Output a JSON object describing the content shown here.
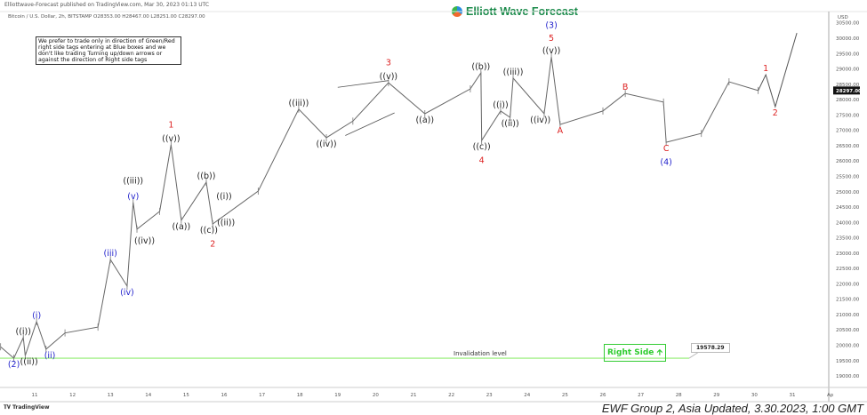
{
  "header": {
    "published": "Elliottwave-Forecast published on TradingView.com, Mar 30, 2023 01:13 UTC",
    "symbol_line": "Bitcoin / U.S. Dollar, 2h, BITSTAMP  O28353.00  H28467.00  L28251.00  C28297.00"
  },
  "brand": {
    "name": "Elliott Wave Forecast",
    "icon": "ewf-logo-icon"
  },
  "note": "We prefer to trade only in direction of Green/Red right side tags entering at Blue boxes and we don't like trading Turning up/down arrows or against the direction of Right side tags",
  "right_side_tag": {
    "label": "Right Side",
    "icon": "arrow-up-icon",
    "color": "#2ecc2e"
  },
  "invalidation": {
    "label": "Invalidation level",
    "value": "19578.29",
    "color": "#90ee70"
  },
  "footer": {
    "tradingview": "TradingView",
    "update": "EWF Group 2, Asia Updated, 3.30.2023, 1:00 GMT"
  },
  "chart_data": {
    "type": "line",
    "title": "",
    "currency": "USD",
    "last_price": "28297.00",
    "ylim": [
      18800,
      30600
    ],
    "xlim": [
      10.1,
      31.95
    ],
    "y_ticks": [
      "30500.00",
      "30000.00",
      "29500.00",
      "29000.00",
      "28500.00",
      "28000.00",
      "27500.00",
      "27000.00",
      "26500.00",
      "26000.00",
      "25500.00",
      "25000.00",
      "24500.00",
      "24000.00",
      "23500.00",
      "23000.00",
      "22500.00",
      "22000.00",
      "21500.00",
      "21000.00",
      "20500.00",
      "20000.00",
      "19500.00",
      "19000.00"
    ],
    "x_ticks": [
      "11",
      "12",
      "13",
      "14",
      "15",
      "16",
      "17",
      "18",
      "19",
      "20",
      "21",
      "22",
      "23",
      "24",
      "25",
      "26",
      "27",
      "28",
      "29",
      "30",
      "31",
      "Ap"
    ],
    "price_path": [
      [
        10.1,
        19950
      ],
      [
        10.45,
        19578
      ],
      [
        10.7,
        20250
      ],
      [
        10.75,
        19660
      ],
      [
        11.05,
        20770
      ],
      [
        11.3,
        19870
      ],
      [
        11.8,
        20400
      ],
      [
        12.67,
        20590
      ],
      [
        13.0,
        22790
      ],
      [
        13.44,
        21925
      ],
      [
        13.6,
        24650
      ],
      [
        13.7,
        23780
      ],
      [
        14.3,
        24360
      ],
      [
        14.6,
        26530
      ],
      [
        14.87,
        24070
      ],
      [
        15.53,
        25310
      ],
      [
        15.7,
        23950
      ],
      [
        16.9,
        25020
      ],
      [
        17.97,
        27690
      ],
      [
        18.7,
        26760
      ],
      [
        19.4,
        27300
      ],
      [
        20.34,
        28550
      ],
      [
        21.3,
        27540
      ],
      [
        22.5,
        28350
      ],
      [
        22.78,
        28870
      ],
      [
        22.8,
        26670
      ],
      [
        23.3,
        27630
      ],
      [
        23.55,
        27420
      ],
      [
        23.63,
        28700
      ],
      [
        24.45,
        27540
      ],
      [
        24.64,
        29390
      ],
      [
        24.87,
        27190
      ],
      [
        26.0,
        27630
      ],
      [
        26.59,
        28200
      ],
      [
        27.6,
        27920
      ],
      [
        27.67,
        26610
      ],
      [
        28.6,
        26900
      ],
      [
        29.33,
        28580
      ],
      [
        30.1,
        28297
      ]
    ],
    "projection": [
      [
        30.1,
        28297
      ],
      [
        30.3,
        28810
      ],
      [
        30.55,
        27770
      ],
      [
        31.12,
        30170
      ]
    ],
    "labels": [
      {
        "t": "(2)",
        "d": 10.45,
        "p": 19578,
        "pos": "below",
        "color": "#2222cc"
      },
      {
        "t": "((i))",
        "d": 10.7,
        "p": 20250,
        "pos": "above",
        "color": "#222"
      },
      {
        "t": "((ii))",
        "d": 10.85,
        "p": 19660,
        "pos": "below",
        "color": "#222"
      },
      {
        "t": "(i)",
        "d": 11.05,
        "p": 20770,
        "pos": "above",
        "color": "#2222cc"
      },
      {
        "t": "(ii)",
        "d": 11.4,
        "p": 19870,
        "pos": "below",
        "color": "#2222cc"
      },
      {
        "t": "(iii)",
        "d": 13.0,
        "p": 22790,
        "pos": "above",
        "color": "#2222cc"
      },
      {
        "t": "(iv)",
        "d": 13.44,
        "p": 21925,
        "pos": "below",
        "color": "#2222cc"
      },
      {
        "t": "(v)",
        "d": 13.6,
        "p": 24650,
        "pos": "above",
        "color": "#2222cc"
      },
      {
        "t": "((iii))",
        "d": 13.6,
        "p": 25150,
        "pos": "above",
        "color": "#222"
      },
      {
        "t": "((iv))",
        "d": 13.9,
        "p": 23600,
        "pos": "below",
        "color": "#222"
      },
      {
        "t": "((v))",
        "d": 14.6,
        "p": 26530,
        "pos": "above",
        "color": "#222"
      },
      {
        "t": "1",
        "d": 14.6,
        "p": 26980,
        "pos": "above",
        "color": "#dd2222"
      },
      {
        "t": "((a))",
        "d": 14.87,
        "p": 24070,
        "pos": "below",
        "color": "#222"
      },
      {
        "t": "((b))",
        "d": 15.53,
        "p": 25310,
        "pos": "above",
        "color": "#222"
      },
      {
        "t": "((i))",
        "d": 16.0,
        "p": 24650,
        "pos": "above",
        "color": "#222"
      },
      {
        "t": "((c))",
        "d": 15.6,
        "p": 23950,
        "pos": "below",
        "color": "#222"
      },
      {
        "t": "((ii))",
        "d": 16.05,
        "p": 24200,
        "pos": "below",
        "color": "#222"
      },
      {
        "t": "2",
        "d": 15.7,
        "p": 23500,
        "pos": "below",
        "color": "#dd2222"
      },
      {
        "t": "((iii))",
        "d": 17.97,
        "p": 27690,
        "pos": "above",
        "color": "#222"
      },
      {
        "t": "((iv))",
        "d": 18.7,
        "p": 26760,
        "pos": "below",
        "color": "#222"
      },
      {
        "t": "((v))",
        "d": 20.34,
        "p": 28550,
        "pos": "above",
        "color": "#222"
      },
      {
        "t": "3",
        "d": 20.34,
        "p": 29000,
        "pos": "above",
        "color": "#dd2222"
      },
      {
        "t": "((a))",
        "d": 21.3,
        "p": 27540,
        "pos": "below",
        "color": "#222"
      },
      {
        "t": "((b))",
        "d": 22.78,
        "p": 28870,
        "pos": "above",
        "color": "#222"
      },
      {
        "t": "((c))",
        "d": 22.8,
        "p": 26670,
        "pos": "below",
        "color": "#222"
      },
      {
        "t": "4",
        "d": 22.8,
        "p": 26230,
        "pos": "below",
        "color": "#dd2222"
      },
      {
        "t": "((i))",
        "d": 23.3,
        "p": 27630,
        "pos": "above",
        "color": "#222"
      },
      {
        "t": "((ii))",
        "d": 23.55,
        "p": 27420,
        "pos": "below",
        "color": "#222"
      },
      {
        "t": "((iii))",
        "d": 23.63,
        "p": 28700,
        "pos": "above",
        "color": "#222"
      },
      {
        "t": "((iv))",
        "d": 24.35,
        "p": 27540,
        "pos": "below",
        "color": "#222"
      },
      {
        "t": "((v))",
        "d": 24.64,
        "p": 29390,
        "pos": "above",
        "color": "#222"
      },
      {
        "t": "5",
        "d": 24.64,
        "p": 29800,
        "pos": "above",
        "color": "#dd2222"
      },
      {
        "t": "(3)",
        "d": 24.64,
        "p": 30220,
        "pos": "above",
        "color": "#2222cc"
      },
      {
        "t": "A",
        "d": 24.87,
        "p": 27190,
        "pos": "below",
        "color": "#dd2222"
      },
      {
        "t": "B",
        "d": 26.59,
        "p": 28200,
        "pos": "above",
        "color": "#dd2222"
      },
      {
        "t": "C",
        "d": 27.67,
        "p": 26610,
        "pos": "below",
        "color": "#dd2222"
      },
      {
        "t": "(4)",
        "d": 27.67,
        "p": 26170,
        "pos": "below",
        "color": "#2222cc"
      },
      {
        "t": "1",
        "d": 30.3,
        "p": 28810,
        "pos": "above",
        "color": "#dd2222"
      },
      {
        "t": "2",
        "d": 30.55,
        "p": 27770,
        "pos": "below",
        "color": "#dd2222"
      }
    ],
    "wedge": [
      [
        [
          19.0,
          28400
        ],
        [
          20.34,
          28620
        ]
      ],
      [
        [
          19.2,
          26830
        ],
        [
          20.5,
          27570
        ]
      ]
    ]
  }
}
